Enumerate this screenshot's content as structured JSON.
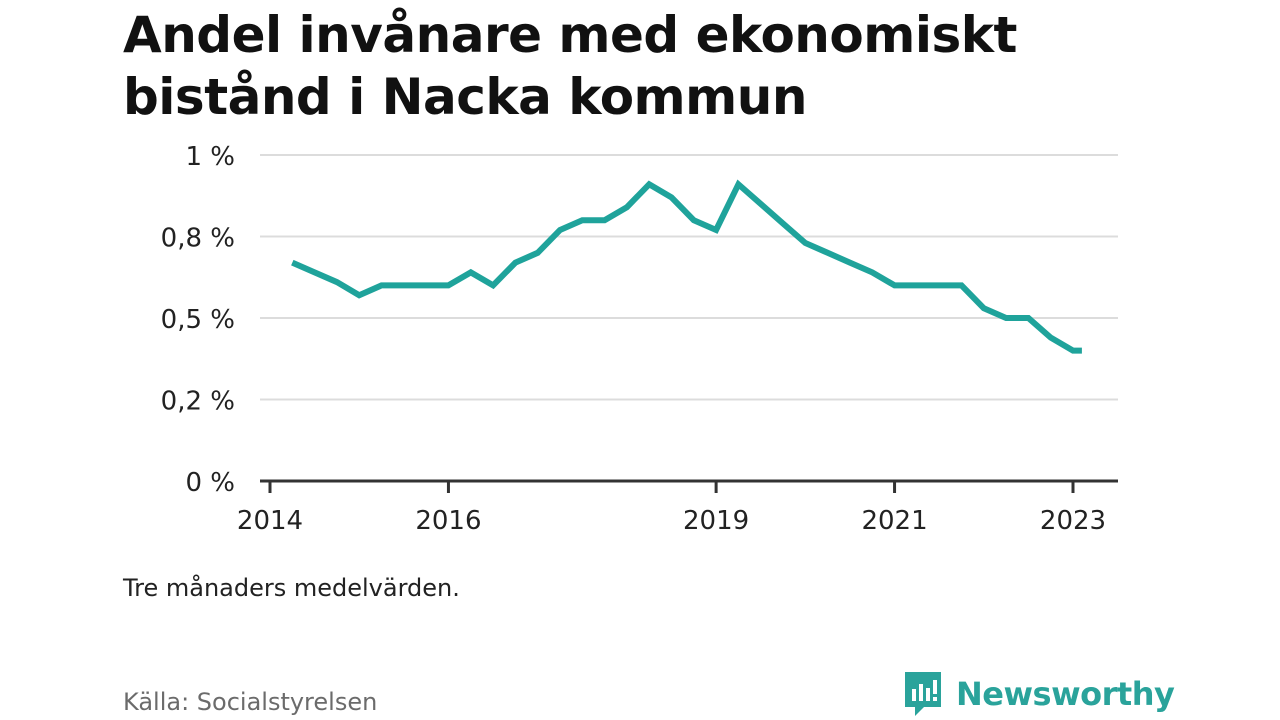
{
  "title": "Andel invånare med ekonomiskt bistånd i Nacka kommun",
  "note": "Tre månaders medelvärden.",
  "source": "Källa: Socialstyrelsen",
  "brand": {
    "name": "Newsworthy",
    "icon": "newsworthy-logo-icon",
    "color": "#2aa39b"
  },
  "chart_data": {
    "type": "line",
    "title": "Andel invånare med ekonomiskt bistånd i Nacka kommun",
    "xlabel": "",
    "ylabel": "",
    "xlim": [
      2014,
      2023.25
    ],
    "ylim": [
      0,
      1
    ],
    "x_ticks": [
      {
        "value": 2014,
        "label": "2014"
      },
      {
        "value": 2016,
        "label": "2016"
      },
      {
        "value": 2019,
        "label": "2019"
      },
      {
        "value": 2021,
        "label": "2021"
      },
      {
        "value": 2023,
        "label": "2023"
      }
    ],
    "y_ticks": [
      {
        "value": 0,
        "label": "0 %"
      },
      {
        "value": 0.25,
        "label": "0,2 %"
      },
      {
        "value": 0.5,
        "label": "0,5 %"
      },
      {
        "value": 0.75,
        "label": "0,8 %"
      },
      {
        "value": 1,
        "label": "1 %"
      }
    ],
    "grid": true,
    "line_color": "#1fa39b",
    "series": [
      {
        "x": [
          2014.25,
          2014.5,
          2014.75,
          2015.0,
          2015.25,
          2015.5,
          2015.75,
          2016.0,
          2016.25,
          2016.5,
          2016.75,
          2017.0,
          2017.25,
          2017.5,
          2017.75,
          2018.0,
          2018.25,
          2018.5,
          2018.75,
          2019.0,
          2019.25,
          2019.5,
          2019.75,
          2020.0,
          2020.25,
          2020.5,
          2020.75,
          2021.0,
          2021.25,
          2021.5,
          2021.75,
          2022.0,
          2022.25,
          2022.5,
          2022.75,
          2023.0,
          2023.1
        ],
        "values": [
          0.67,
          0.64,
          0.61,
          0.57,
          0.6,
          0.6,
          0.6,
          0.6,
          0.64,
          0.6,
          0.67,
          0.7,
          0.77,
          0.8,
          0.8,
          0.84,
          0.91,
          0.87,
          0.8,
          0.77,
          0.91,
          0.85,
          0.79,
          0.73,
          0.7,
          0.67,
          0.64,
          0.6,
          0.6,
          0.6,
          0.6,
          0.53,
          0.5,
          0.5,
          0.44,
          0.4,
          0.4
        ]
      }
    ]
  }
}
